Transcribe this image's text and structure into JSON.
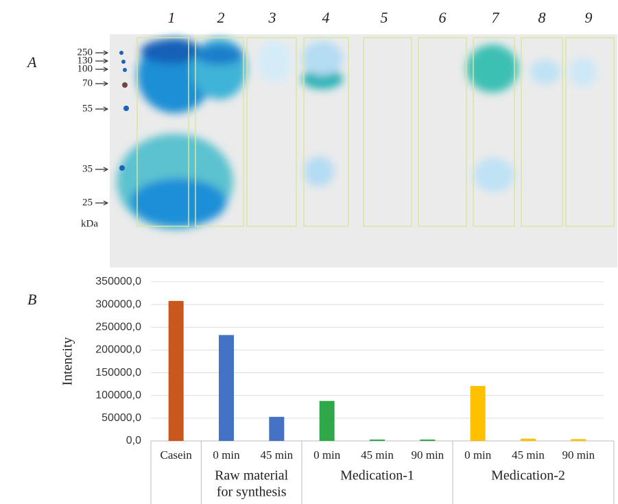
{
  "panels": [
    "A",
    "B"
  ],
  "gel": {
    "lanes": [
      "1",
      "2",
      "3",
      "4",
      "5",
      "6",
      "7",
      "8",
      "9"
    ],
    "markers": [
      "250",
      "130",
      "100",
      "70",
      "55",
      "35",
      "25"
    ],
    "unit": "kDa"
  },
  "chart_data": {
    "type": "bar",
    "ylabel": "Intencity",
    "categories": [
      "Casein",
      "0 min",
      "45 min",
      "0 min",
      "45 min",
      "90 min",
      "0 min",
      "45 min",
      "90 min"
    ],
    "values": [
      308000,
      233000,
      53000,
      88000,
      3000,
      3000,
      121000,
      5000,
      4000
    ],
    "colors": [
      "#c8581e",
      "#4472c4",
      "#4472c4",
      "#2fa84a",
      "#2fa84a",
      "#2fa84a",
      "#ffc000",
      "#ffc000",
      "#ffc000"
    ],
    "groups": [
      {
        "lines": [
          "Raw material",
          "for synthesis"
        ],
        "span": 2
      },
      {
        "lines": [
          "Medication-1"
        ],
        "span": 3
      },
      {
        "lines": [
          "Medication-2"
        ],
        "span": 3
      }
    ],
    "ylim": [
      0,
      350000
    ],
    "yticks": [
      {
        "value": 0,
        "label": "0,0"
      },
      {
        "value": 50000,
        "label": "50000,0"
      },
      {
        "value": 100000,
        "label": "100000,0"
      },
      {
        "value": 150000,
        "label": "150000,0"
      },
      {
        "value": 200000,
        "label": "200000,0"
      },
      {
        "value": 250000,
        "label": "250000,0"
      },
      {
        "value": 300000,
        "label": "300000,0"
      },
      {
        "value": 350000,
        "label": "350000,0"
      }
    ],
    "grid": true
  }
}
